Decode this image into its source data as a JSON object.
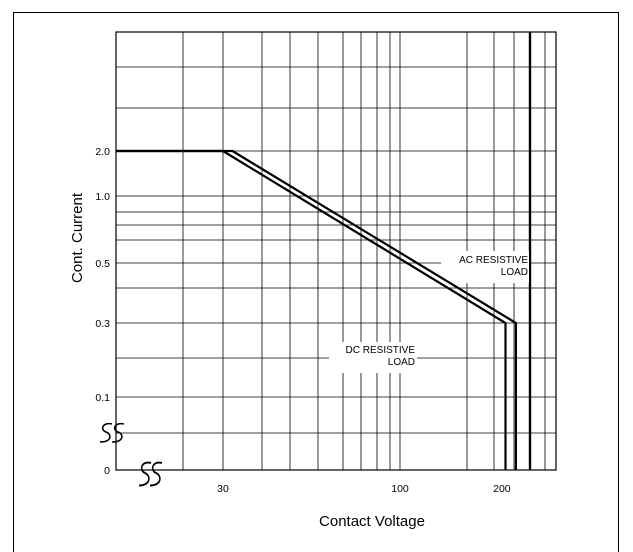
{
  "chart_data": {
    "type": "line",
    "xlabel": "Contact Voltage",
    "ylabel": "Cont. Current",
    "x_ticks": [
      "30",
      "100",
      "200"
    ],
    "y_ticks": [
      "0",
      "0.1",
      "0.3",
      "0.5",
      "1.0",
      "2.0"
    ],
    "x_scale": "log",
    "xlim": [
      10,
      300
    ],
    "grid": true,
    "series": [
      {
        "name": "AC RESISTIVE LOAD",
        "x": [
          10,
          32,
          220,
          220
        ],
        "y": [
          2.0,
          2.0,
          0.3,
          0
        ]
      },
      {
        "name": "DC RESISTIVE LOAD",
        "x": [
          10,
          30,
          205,
          205
        ],
        "y": [
          2.0,
          2.0,
          0.3,
          0
        ]
      }
    ],
    "annotations": [
      {
        "lines": [
          "AC RESISTIVE",
          "LOAD"
        ]
      },
      {
        "lines": [
          "DC RESISTIVE",
          "LOAD"
        ]
      }
    ]
  }
}
